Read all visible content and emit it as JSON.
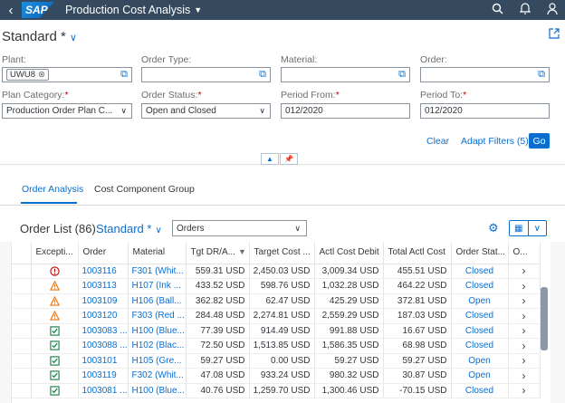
{
  "shell": {
    "logo": "SAP",
    "title": "Production Cost Analysis"
  },
  "header": {
    "variant": "Standard *"
  },
  "filters": {
    "plant_label": "Plant:",
    "plant_token": "UWU8",
    "order_type_label": "Order Type:",
    "order_type_value": "",
    "material_label": "Material:",
    "material_value": "",
    "order_label": "Order:",
    "order_value": "",
    "plan_category_label": "Plan Category:",
    "plan_category_value": "Production Order Plan C...",
    "order_status_label": "Order Status:",
    "order_status_value": "Open and Closed",
    "period_from_label": "Period From:",
    "period_from_value": "012/2020",
    "period_to_label": "Period To:",
    "period_to_value": "012/2020",
    "required_mark": "*",
    "clear": "Clear",
    "adapt": "Adapt Filters (5)",
    "go": "Go"
  },
  "tabs": [
    {
      "label": "Order Analysis"
    },
    {
      "label": "Cost Component Group"
    }
  ],
  "table": {
    "title": "Order List (86)",
    "variant": "Standard *",
    "view": "Orders",
    "columns": [
      "Excepti...",
      "Order",
      "Material",
      "Tgt DR/A...",
      "Target Cost ...",
      "Actl Cost Debit",
      "Total Actl Cost",
      "Order Stat...",
      "O..."
    ],
    "rows": [
      {
        "exc": "error",
        "order": "1003116",
        "material": "F301 (Whit...",
        "tgt": "559.31",
        "tgt_cur": "USD",
        "target": "2,450.03",
        "target_cur": "USD",
        "actl": "3,009.34",
        "actl_cur": "USD",
        "total": "455.51",
        "total_cur": "USD",
        "status": "Closed"
      },
      {
        "exc": "warning",
        "order": "1003113",
        "material": "H107 (Ink ...",
        "tgt": "433.52",
        "tgt_cur": "USD",
        "target": "598.76",
        "target_cur": "USD",
        "actl": "1,032.28",
        "actl_cur": "USD",
        "total": "464.22",
        "total_cur": "USD",
        "status": "Closed"
      },
      {
        "exc": "warning",
        "order": "1003109",
        "material": "H106 (Ball...",
        "tgt": "362.82",
        "tgt_cur": "USD",
        "target": "62.47",
        "target_cur": "USD",
        "actl": "425.29",
        "actl_cur": "USD",
        "total": "372.81",
        "total_cur": "USD",
        "status": "Open"
      },
      {
        "exc": "warning",
        "order": "1003120",
        "material": "F303 (Red ...",
        "tgt": "284.48",
        "tgt_cur": "USD",
        "target": "2,274.81",
        "target_cur": "USD",
        "actl": "2,559.29",
        "actl_cur": "USD",
        "total": "187.03",
        "total_cur": "USD",
        "status": "Closed"
      },
      {
        "exc": "ok",
        "order": "1003083 ...",
        "material": "H100 (Blue...",
        "tgt": "77.39",
        "tgt_cur": "USD",
        "target": "914.49",
        "target_cur": "USD",
        "actl": "991.88",
        "actl_cur": "USD",
        "total": "16.67",
        "total_cur": "USD",
        "status": "Closed"
      },
      {
        "exc": "ok",
        "order": "1003088 ...",
        "material": "H102 (Blac...",
        "tgt": "72.50",
        "tgt_cur": "USD",
        "target": "1,513.85",
        "target_cur": "USD",
        "actl": "1,586.35",
        "actl_cur": "USD",
        "total": "68.98",
        "total_cur": "USD",
        "status": "Closed"
      },
      {
        "exc": "ok",
        "order": "1003101",
        "material": "H105 (Gre...",
        "tgt": "59.27",
        "tgt_cur": "USD",
        "target": "0.00",
        "target_cur": "USD",
        "actl": "59.27",
        "actl_cur": "USD",
        "total": "59.27",
        "total_cur": "USD",
        "status": "Open"
      },
      {
        "exc": "ok",
        "order": "1003119",
        "material": "F302 (Whit...",
        "tgt": "47.08",
        "tgt_cur": "USD",
        "target": "933.24",
        "target_cur": "USD",
        "actl": "980.32",
        "actl_cur": "USD",
        "total": "30.87",
        "total_cur": "USD",
        "status": "Open"
      },
      {
        "exc": "ok",
        "order": "1003081 ...",
        "material": "H100 (Blue...",
        "tgt": "40.76",
        "tgt_cur": "USD",
        "target": "1,259.70",
        "target_cur": "USD",
        "actl": "1,300.46",
        "actl_cur": "USD",
        "total": "-70.15",
        "total_cur": "USD",
        "status": "Closed"
      }
    ]
  },
  "colors": {
    "shell": "#354a5f",
    "accent": "#0a6ed1",
    "error": "#bb0000",
    "warning": "#e9730c",
    "success": "#107e3e"
  }
}
